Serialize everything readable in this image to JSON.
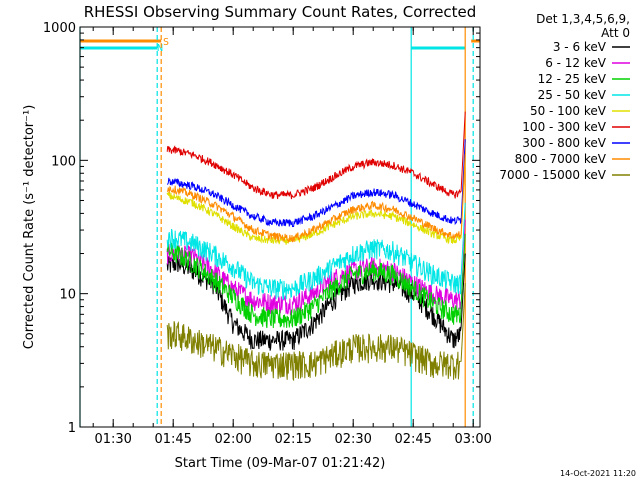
{
  "chart_data": {
    "type": "line",
    "title": "RHESSI Observing Summary Count Rates, Corrected",
    "xlabel": "Start Time (09-Mar-07 01:21:42)",
    "ylabel": "Corrected Count Rate (s⁻¹ detector⁻¹)",
    "yscale": "log",
    "ylim": [
      1,
      1000
    ],
    "xlim": [
      "01:21:42",
      "03:01:42"
    ],
    "x_ticks": [
      "01:30",
      "01:45",
      "02:00",
      "02:15",
      "02:30",
      "02:45",
      "03:00"
    ],
    "y_ticks": [
      "1",
      "10",
      "100",
      "1000"
    ],
    "legend_position": "right",
    "legend_header": [
      "Det 1,3,4,5,6,9,",
      "Att 0"
    ],
    "footer_date": "14-Oct-2021 11:20",
    "markers": [
      {
        "label": "S",
        "color": "#ff8c00"
      },
      {
        "label": "N",
        "color": "#00e5e5"
      }
    ],
    "flag_intervals": {
      "saa": {
        "color": "#ff8c00",
        "spans": [
          [
            "01:21:42",
            "01:42:00"
          ],
          [
            "02:59:30",
            "03:01:42"
          ]
        ]
      },
      "night": {
        "color": "#00e5e5",
        "spans": [
          [
            "01:21:42",
            "01:41:00"
          ],
          [
            "02:44:30",
            "02:58:00"
          ]
        ]
      }
    },
    "vertical_lines": [
      {
        "time": "01:21:42",
        "color": "#00e5e5",
        "style": "solid"
      },
      {
        "time": "01:41:00",
        "color": "#00e5e5",
        "style": "dashed"
      },
      {
        "time": "01:42:00",
        "color": "#ff8c00",
        "style": "dashed"
      },
      {
        "time": "02:44:30",
        "color": "#00e5e5",
        "style": "solid"
      },
      {
        "time": "02:58:00",
        "color": "#ff8c00",
        "style": "solid"
      },
      {
        "time": "03:00:00",
        "color": "#00e5e5",
        "style": "dashed"
      }
    ],
    "x": [
      "01:43:30",
      "01:46",
      "01:50",
      "01:55",
      "02:00",
      "02:05",
      "02:10",
      "02:15",
      "02:20",
      "02:25",
      "02:30",
      "02:35",
      "02:40",
      "02:45",
      "02:50",
      "02:55",
      "02:57"
    ],
    "series": [
      {
        "name": "3 - 6 keV",
        "color": "#000000",
        "values": [
          16,
          17,
          15,
          12,
          6,
          4.5,
          4.5,
          4.5,
          6,
          9,
          12,
          13,
          12,
          10,
          7,
          4.5,
          5
        ]
      },
      {
        "name": "6 - 12 keV",
        "color": "#e000e0",
        "values": [
          20,
          20,
          19,
          15,
          11,
          9,
          8.5,
          8.5,
          10,
          13,
          15,
          16,
          15,
          12,
          10,
          9,
          9
        ]
      },
      {
        "name": "12 - 25 keV",
        "color": "#00d000",
        "values": [
          21,
          20,
          17,
          13,
          9.5,
          7,
          6.5,
          6.5,
          8,
          11,
          14,
          15,
          14,
          11,
          8.5,
          7,
          7
        ]
      },
      {
        "name": "25 - 50 keV",
        "color": "#00e5e5",
        "values": [
          27,
          26,
          24,
          20,
          16,
          12,
          11,
          11,
          13,
          16,
          20,
          22,
          21,
          17,
          14,
          12,
          12
        ]
      },
      {
        "name": "50 - 100 keV",
        "color": "#e0e000",
        "values": [
          55,
          52,
          48,
          40,
          32,
          26,
          25,
          25,
          28,
          33,
          38,
          40,
          38,
          33,
          28,
          25,
          26
        ]
      },
      {
        "name": "100 - 300 keV",
        "color": "#e00000",
        "values": [
          120,
          118,
          110,
          95,
          78,
          62,
          55,
          55,
          62,
          75,
          90,
          97,
          92,
          80,
          66,
          55,
          58
        ]
      },
      {
        "name": "300 - 800 keV",
        "color": "#0000ff",
        "values": [
          70,
          68,
          64,
          56,
          46,
          38,
          34,
          34,
          38,
          45,
          54,
          58,
          55,
          47,
          40,
          35,
          36
        ]
      },
      {
        "name": "800 - 7000 keV",
        "color": "#ff8c00",
        "values": [
          62,
          60,
          55,
          47,
          38,
          30,
          27,
          26,
          30,
          36,
          43,
          46,
          43,
          37,
          31,
          27,
          28
        ]
      },
      {
        "name": "7000 - 15000 keV",
        "color": "#808000",
        "values": [
          5,
          5,
          4.5,
          4,
          3.5,
          3,
          3,
          3,
          3,
          3.5,
          4,
          4,
          4,
          3.5,
          3,
          3,
          3
        ]
      }
    ]
  }
}
